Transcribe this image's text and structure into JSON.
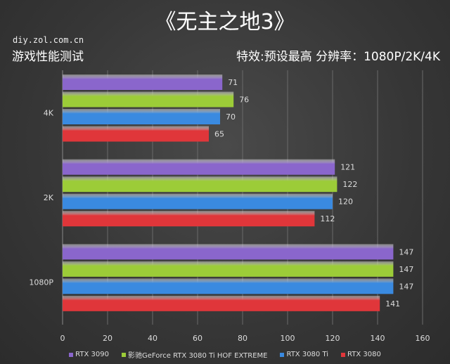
{
  "header": {
    "title": "《无主之地3》",
    "site": "diy.zol.com.cn",
    "subtitle": "游戏性能测试",
    "settings": "特效:预设最高  分辨率：1080P/2K/4K"
  },
  "chart_data": {
    "type": "bar",
    "orientation": "horizontal",
    "categories": [
      "4K",
      "2K",
      "1080P"
    ],
    "series": [
      {
        "name": "RTX 3090",
        "color": "#8a66cc",
        "values": [
          71,
          121,
          147
        ]
      },
      {
        "name": "影驰GeForce RTX 3080 Ti HOF EXTREME",
        "color": "#9ccc38",
        "values": [
          76,
          122,
          147
        ]
      },
      {
        "name": "RTX 3080 Ti",
        "color": "#3a8ae0",
        "values": [
          70,
          120,
          147
        ]
      },
      {
        "name": "RTX 3080",
        "color": "#e0363a",
        "values": [
          65,
          112,
          141
        ]
      }
    ],
    "xlim": [
      0,
      160
    ],
    "xticks": [
      0,
      20,
      40,
      60,
      80,
      100,
      120,
      140,
      160
    ],
    "grid": true,
    "legend": "bottom",
    "data_labels": true
  }
}
